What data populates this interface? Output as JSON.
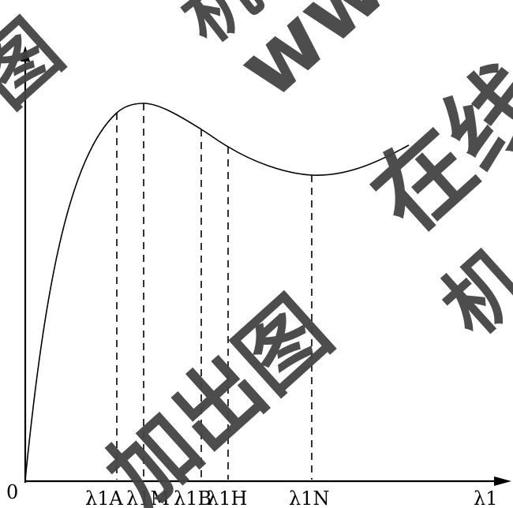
{
  "diagram": {
    "origin_label": "0",
    "x_axis_label": "λ1",
    "y_axis_label": "",
    "markers": [
      {
        "id": "lambda-1a",
        "label": "λ1A"
      },
      {
        "id": "lambda-1m",
        "label": "λ1M"
      },
      {
        "id": "lambda-1b",
        "label": "λ1B"
      },
      {
        "id": "lambda-1h",
        "label": "λ1H"
      },
      {
        "id": "lambda-1n",
        "label": "λ1N"
      }
    ]
  },
  "watermarks": [
    "机",
    "www",
    "在线",
    "机",
    "加出图",
    "图"
  ]
}
